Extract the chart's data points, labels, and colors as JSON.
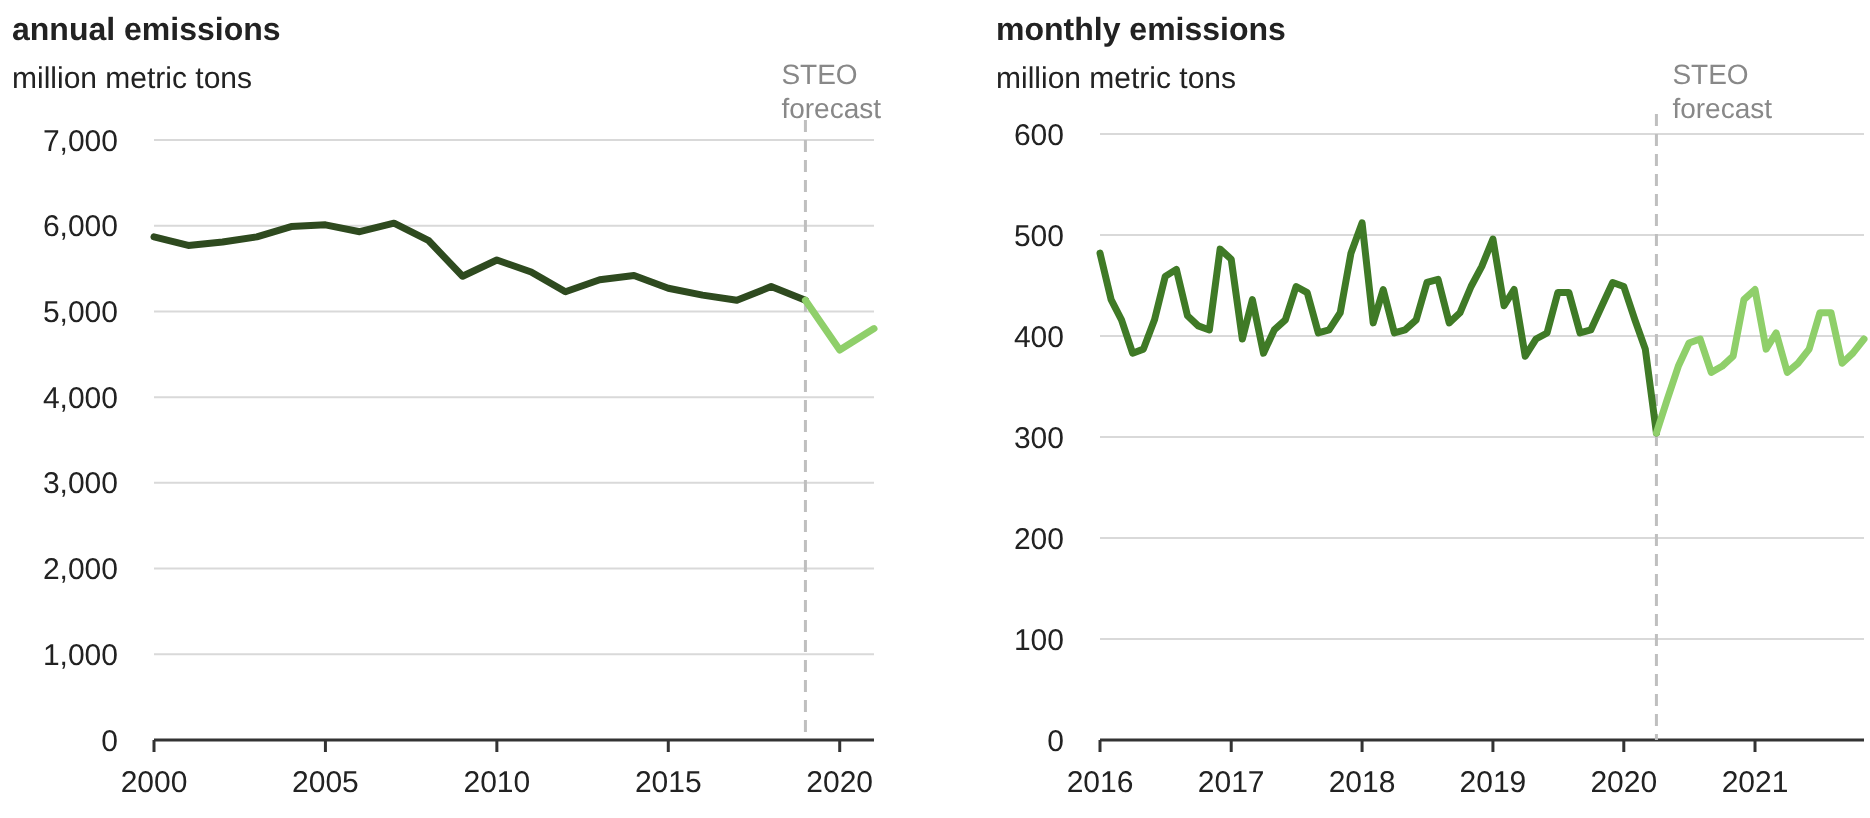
{
  "chart_data": [
    {
      "type": "line",
      "title": "annual emissions",
      "subtitle": "million metric tons",
      "xlim": [
        2000,
        2021
      ],
      "xticks": [
        2000,
        2005,
        2010,
        2015,
        2020
      ],
      "ylim": [
        0,
        7000
      ],
      "yticks": [
        {
          "value": 0,
          "label": "0"
        },
        {
          "value": 1000,
          "label": "1,000"
        },
        {
          "value": 2000,
          "label": "2,000"
        },
        {
          "value": 3000,
          "label": "3,000"
        },
        {
          "value": 4000,
          "label": "4,000"
        },
        {
          "value": 5000,
          "label": "5,000"
        },
        {
          "value": 6000,
          "label": "6,000"
        },
        {
          "value": 7000,
          "label": "7,000"
        }
      ],
      "grid": "y",
      "line_style": "solid",
      "ref_lines": [
        {
          "axis": "x",
          "value": 2019,
          "label": "STEO forecast",
          "color": "#bfbfbf",
          "line_style": "dashed"
        }
      ],
      "series": [
        {
          "color": "#2e4a1f",
          "x": [
            2000,
            2001,
            2002,
            2003,
            2004,
            2005,
            2006,
            2007,
            2008,
            2009,
            2010,
            2011,
            2012,
            2013,
            2014,
            2015,
            2016,
            2017,
            2018,
            2019
          ],
          "values": [
            5870,
            5770,
            5810,
            5870,
            5990,
            6010,
            5930,
            6030,
            5830,
            5410,
            5600,
            5460,
            5230,
            5370,
            5420,
            5270,
            5190,
            5130,
            5290,
            5130
          ]
        },
        {
          "color": "#8fcf6a",
          "x": [
            2019,
            2020,
            2021
          ],
          "values": [
            5130,
            4550,
            4800
          ]
        }
      ]
    },
    {
      "type": "line",
      "title": "monthly emissions",
      "subtitle": "million metric tons",
      "xlim": [
        "2016-01",
        "2021-11"
      ],
      "xticks": [
        "2016",
        "2017",
        "2018",
        "2019",
        "2020",
        "2021"
      ],
      "ylim": [
        0,
        600
      ],
      "yticks": [
        0,
        100,
        200,
        300,
        400,
        500,
        600
      ],
      "grid": "y",
      "line_style": "solid",
      "ref_lines": [
        {
          "axis": "x",
          "value": "2020-04",
          "label": "STEO forecast",
          "color": "#bfbfbf",
          "line_style": "dashed"
        }
      ],
      "series": [
        {
          "color": "#3f7a26",
          "x": [
            "2016-01",
            "2016-02",
            "2016-03",
            "2016-04",
            "2016-05",
            "2016-06",
            "2016-07",
            "2016-08",
            "2016-09",
            "2016-10",
            "2016-11",
            "2016-12",
            "2017-01",
            "2017-02",
            "2017-03",
            "2017-04",
            "2017-05",
            "2017-06",
            "2017-07",
            "2017-08",
            "2017-09",
            "2017-10",
            "2017-11",
            "2017-12",
            "2018-01",
            "2018-02",
            "2018-03",
            "2018-04",
            "2018-05",
            "2018-06",
            "2018-07",
            "2018-08",
            "2018-09",
            "2018-10",
            "2018-11",
            "2018-12",
            "2019-01",
            "2019-02",
            "2019-03",
            "2019-04",
            "2019-05",
            "2019-06",
            "2019-07",
            "2019-08",
            "2019-09",
            "2019-10",
            "2019-11",
            "2019-12",
            "2020-01",
            "2020-02",
            "2020-03",
            "2020-04"
          ],
          "values": [
            482,
            436,
            416,
            383,
            387,
            416,
            459,
            466,
            420,
            410,
            406,
            486,
            476,
            397,
            436,
            383,
            406,
            416,
            449,
            443,
            403,
            406,
            423,
            482,
            512,
            413,
            446,
            403,
            406,
            416,
            453,
            456,
            413,
            423,
            449,
            469,
            496,
            430,
            446,
            380,
            397,
            403,
            443,
            443,
            403,
            406,
            430,
            453,
            449,
            416,
            387,
            304
          ]
        },
        {
          "color": "#8fcf6a",
          "x": [
            "2020-04",
            "2020-05",
            "2020-06",
            "2020-07",
            "2020-08",
            "2020-09",
            "2020-10",
            "2020-11",
            "2020-12",
            "2021-01",
            "2021-02",
            "2021-03",
            "2021-04",
            "2021-05",
            "2021-06",
            "2021-07",
            "2021-08",
            "2021-09",
            "2021-10",
            "2021-11"
          ],
          "values": [
            304,
            337,
            370,
            393,
            397,
            364,
            370,
            380,
            436,
            446,
            387,
            403,
            364,
            373,
            387,
            423,
            423,
            373,
            383,
            397
          ]
        }
      ]
    }
  ]
}
